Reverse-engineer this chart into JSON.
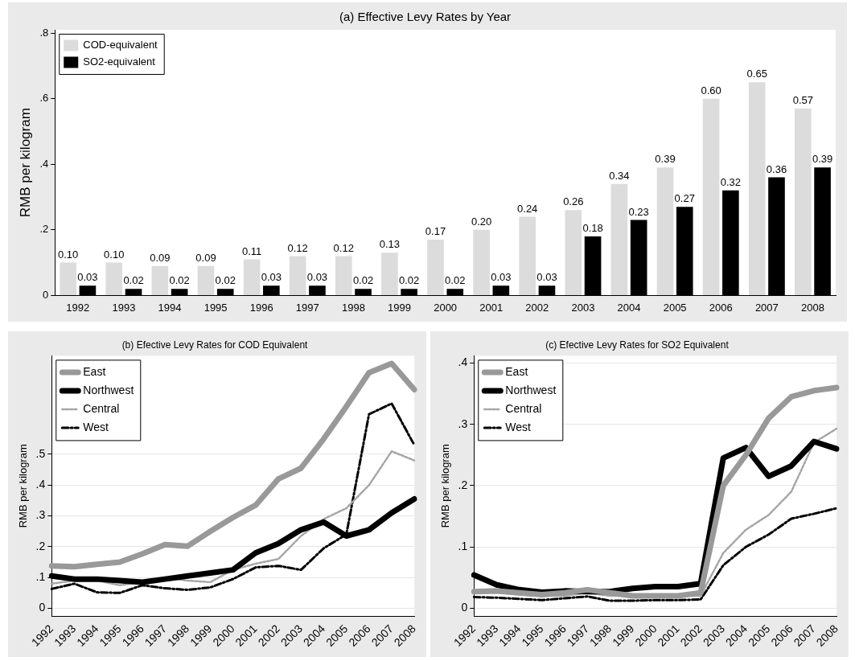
{
  "chart_data": [
    {
      "type": "bar",
      "title": "(a) Effective Levy Rates by Year",
      "ylabel": "RMB per kilogram",
      "categories": [
        "1992",
        "1993",
        "1994",
        "1995",
        "1996",
        "1997",
        "1998",
        "1999",
        "2000",
        "2001",
        "2002",
        "2003",
        "2004",
        "2005",
        "2006",
        "2007",
        "2008"
      ],
      "series": [
        {
          "name": "COD-equivalent",
          "color": "#dcdcdc",
          "values": [
            0.1,
            0.1,
            0.09,
            0.09,
            0.11,
            0.12,
            0.12,
            0.13,
            0.17,
            0.2,
            0.24,
            0.26,
            0.34,
            0.39,
            0.6,
            0.65,
            0.57
          ],
          "value_labels": [
            "0.10",
            "0.10",
            "0.09",
            "0.09",
            "0.11",
            "0.12",
            "0.12",
            "0.13",
            "0.17",
            "0.20",
            "0.24",
            "0.26",
            "0.34",
            "0.39",
            "0.60",
            "0.65",
            "0.57"
          ]
        },
        {
          "name": "SO2-equivalent",
          "color": "#000000",
          "values": [
            0.03,
            0.02,
            0.02,
            0.02,
            0.03,
            0.03,
            0.02,
            0.02,
            0.02,
            0.03,
            0.03,
            0.18,
            0.23,
            0.27,
            0.32,
            0.36,
            0.39
          ],
          "value_labels": [
            "0.03",
            "0.02",
            "0.02",
            "0.02",
            "0.03",
            "0.03",
            "0.02",
            "0.02",
            "0.02",
            "0.03",
            "0.03",
            "0.18",
            "0.23",
            "0.27",
            "0.32",
            "0.36",
            "0.39"
          ]
        }
      ],
      "ylim": [
        0,
        0.81
      ],
      "yticks": [
        {
          "value": 0,
          "label": "0"
        },
        {
          "value": 0.2,
          "label": ".2"
        },
        {
          "value": 0.4,
          "label": ".4"
        },
        {
          "value": 0.6,
          "label": ".6"
        },
        {
          "value": 0.8,
          "label": ".8"
        }
      ],
      "grid": false,
      "legend": "top left"
    },
    {
      "type": "line",
      "title": "(b) Efective Levy Rates for COD Equivalent",
      "ylabel": "RMB per kilogram",
      "categories": [
        "1992",
        "1993",
        "1994",
        "1995",
        "1996",
        "1997",
        "1998",
        "1999",
        "2000",
        "2001",
        "2002",
        "2003",
        "2004",
        "2005",
        "2006",
        "2007",
        "2008"
      ],
      "series": [
        {
          "name": "East",
          "color": "#999999",
          "line_style": "solid",
          "values": [
            0.138,
            0.135,
            0.143,
            0.15,
            0.177,
            0.207,
            0.202,
            0.25,
            0.295,
            0.335,
            0.42,
            0.455,
            0.55,
            0.655,
            0.765,
            0.795,
            0.71
          ]
        },
        {
          "name": "Northwest",
          "color": "#000000",
          "line_style": "solid",
          "values": [
            0.105,
            0.095,
            0.095,
            0.09,
            0.085,
            0.095,
            0.105,
            0.115,
            0.125,
            0.18,
            0.21,
            0.255,
            0.28,
            0.235,
            0.255,
            0.31,
            0.355
          ]
        },
        {
          "name": "Central",
          "color": "#a6a6a6",
          "line_style": "dotted",
          "values": [
            0.08,
            0.09,
            0.09,
            0.075,
            0.085,
            0.1,
            0.09,
            0.085,
            0.125,
            0.145,
            0.16,
            0.235,
            0.29,
            0.325,
            0.4,
            0.51,
            0.48
          ]
        },
        {
          "name": "West",
          "color": "#000000",
          "line_style": "dashed",
          "values": [
            0.063,
            0.08,
            0.052,
            0.05,
            0.075,
            0.065,
            0.06,
            0.068,
            0.095,
            0.133,
            0.138,
            0.125,
            0.195,
            0.24,
            0.63,
            0.665,
            0.53
          ]
        }
      ],
      "ylim": [
        -0.025,
        0.82
      ],
      "yticks": [
        {
          "value": 0,
          "label": "0"
        },
        {
          "value": 0.1,
          "label": ".1"
        },
        {
          "value": 0.2,
          "label": ".2"
        },
        {
          "value": 0.3,
          "label": ".3"
        },
        {
          "value": 0.4,
          "label": ".4"
        },
        {
          "value": 0.5,
          "label": ".5"
        }
      ],
      "grid": "y",
      "legend": "top left"
    },
    {
      "type": "line",
      "title": "(c) Efective Levy Rates for SO2 Equivalent",
      "ylabel": "RMB per kilogram",
      "categories": [
        "1992",
        "1993",
        "1994",
        "1995",
        "1996",
        "1997",
        "1998",
        "1999",
        "2000",
        "2001",
        "2002",
        "2003",
        "2004",
        "2005",
        "2006",
        "2007",
        "2008"
      ],
      "series": [
        {
          "name": "East",
          "color": "#999999",
          "line_style": "solid",
          "values": [
            0.027,
            0.028,
            0.025,
            0.022,
            0.025,
            0.03,
            0.025,
            0.02,
            0.02,
            0.02,
            0.025,
            0.2,
            0.25,
            0.31,
            0.345,
            0.355,
            0.36
          ]
        },
        {
          "name": "Northwest",
          "color": "#000000",
          "line_style": "solid",
          "values": [
            0.054,
            0.038,
            0.03,
            0.026,
            0.028,
            0.027,
            0.027,
            0.032,
            0.035,
            0.035,
            0.04,
            0.245,
            0.262,
            0.215,
            0.232,
            0.272,
            0.26
          ]
        },
        {
          "name": "Central",
          "color": "#a6a6a6",
          "line_style": "dotted",
          "values": [
            0.025,
            0.025,
            0.022,
            0.02,
            0.02,
            0.025,
            0.02,
            0.02,
            0.02,
            0.02,
            0.02,
            0.09,
            0.128,
            0.152,
            0.19,
            0.27,
            0.293
          ]
        },
        {
          "name": "West",
          "color": "#000000",
          "line_style": "dashed",
          "values": [
            0.018,
            0.017,
            0.015,
            0.013,
            0.016,
            0.019,
            0.012,
            0.012,
            0.013,
            0.013,
            0.014,
            0.07,
            0.1,
            0.12,
            0.146,
            0.154,
            0.163
          ]
        }
      ],
      "ylim": [
        -0.013,
        0.412
      ],
      "yticks": [
        {
          "value": 0,
          "label": "0"
        },
        {
          "value": 0.1,
          "label": ".1"
        },
        {
          "value": 0.2,
          "label": ".2"
        },
        {
          "value": 0.3,
          "label": ".3"
        },
        {
          "value": 0.4,
          "label": ".4"
        }
      ],
      "grid": "y",
      "legend": "top left"
    }
  ]
}
